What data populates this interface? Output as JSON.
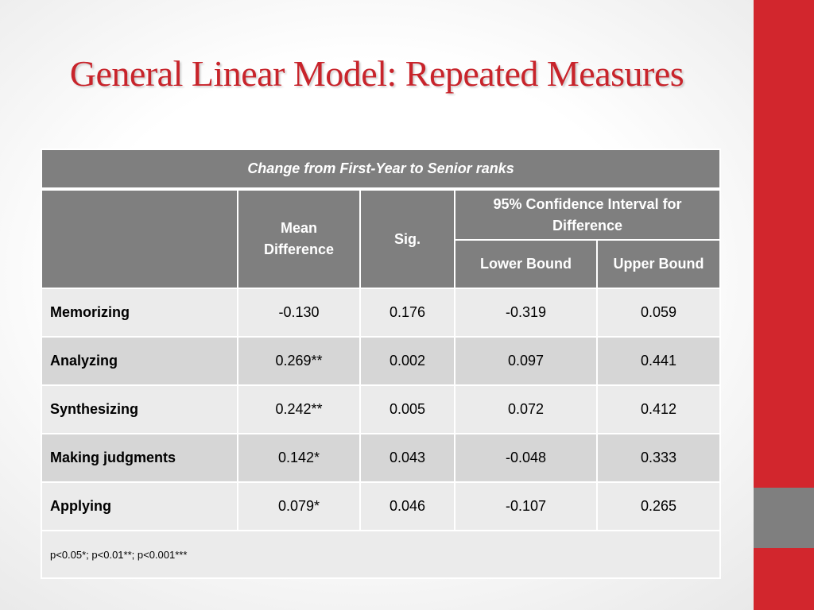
{
  "slide": {
    "title": "General Linear Model: Repeated Measures"
  },
  "table": {
    "caption": "Change from First-Year to Senior ranks",
    "headers": {
      "mean_difference": "Mean Difference",
      "sig": "Sig.",
      "ci": "95% Confidence Interval for Difference",
      "lower_bound": "Lower Bound",
      "upper_bound": "Upper Bound"
    },
    "rows": [
      {
        "label": "Memorizing",
        "mean_difference": "-0.130",
        "sig": "0.176",
        "lower": "-0.319",
        "upper": "0.059"
      },
      {
        "label": "Analyzing",
        "mean_difference": "0.269**",
        "sig": "0.002",
        "lower": "0.097",
        "upper": "0.441"
      },
      {
        "label": "Synthesizing",
        "mean_difference": "0.242**",
        "sig": "0.005",
        "lower": "0.072",
        "upper": "0.412"
      },
      {
        "label": "Making judgments",
        "mean_difference": "0.142*",
        "sig": "0.043",
        "lower": "-0.048",
        "upper": "0.333"
      },
      {
        "label": "Applying",
        "mean_difference": "0.079*",
        "sig": "0.046",
        "lower": "-0.107",
        "upper": "0.265"
      }
    ],
    "footnote": "p<0.05*; p<0.01**; p<0.001***"
  },
  "colors": {
    "accent_red": "#c8242b",
    "bar_red": "#d2262d",
    "header_gray": "#7f7f7f",
    "row_dark": "#d6d6d6",
    "row_light": "#ebebeb"
  }
}
